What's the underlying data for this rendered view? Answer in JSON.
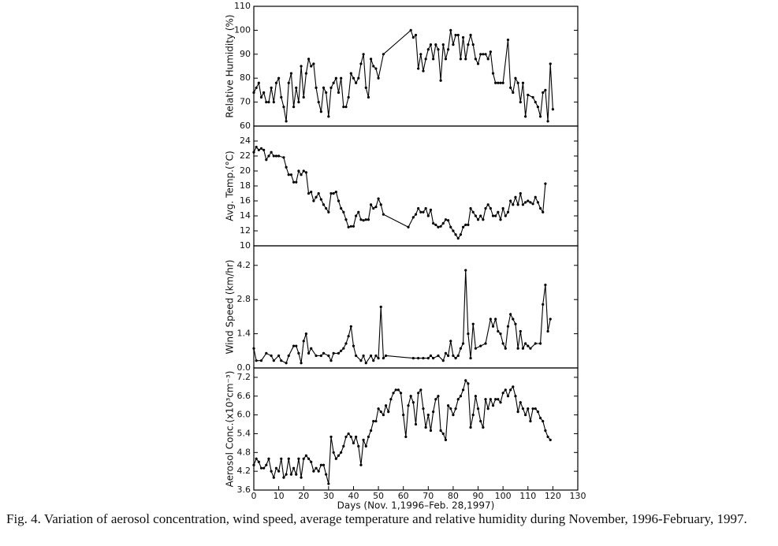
{
  "caption": "Fig. 4. Variation of aerosol concentration, wind speed, average temperature and relative humidity during November, 1996-February, 1997.",
  "chart_data": [
    {
      "type": "line",
      "ylabel": "Relative Humidity (%)",
      "color": "#000000",
      "xlim": [
        0,
        130
      ],
      "ylim": [
        60,
        110
      ],
      "yticks": [
        60,
        70,
        80,
        90,
        100,
        110
      ],
      "x": [
        0,
        1,
        2,
        3,
        4,
        5,
        6,
        7,
        8,
        9,
        10,
        11,
        12,
        13,
        14,
        15,
        16,
        17,
        18,
        19,
        20,
        21,
        22,
        23,
        24,
        25,
        26,
        27,
        28,
        29,
        30,
        31,
        32,
        33,
        34,
        35,
        36,
        37,
        38,
        39,
        40,
        41,
        42,
        43,
        44,
        45,
        46,
        47,
        48,
        49,
        50,
        52,
        63,
        64,
        65,
        66,
        67,
        68,
        69,
        70,
        71,
        72,
        73,
        74,
        75,
        76,
        77,
        78,
        79,
        80,
        81,
        82,
        83,
        84,
        85,
        86,
        87,
        88,
        89,
        90,
        91,
        92,
        93,
        94,
        95,
        96,
        97,
        98,
        99,
        100,
        102,
        103,
        104,
        105,
        106,
        107,
        108,
        109,
        110,
        112,
        113,
        114,
        115,
        116,
        117,
        118,
        119,
        120
      ],
      "values": [
        74,
        76,
        78,
        72,
        74,
        70,
        70,
        76,
        70,
        78,
        80,
        72,
        68,
        62,
        78,
        82,
        68,
        76,
        70,
        85,
        72,
        82,
        88,
        85,
        86,
        76,
        70,
        66,
        76,
        74,
        64,
        76,
        78,
        80,
        74,
        80,
        68,
        68,
        72,
        82,
        80,
        78,
        80,
        86,
        90,
        76,
        72,
        88,
        85,
        84,
        80,
        90,
        100,
        97,
        98,
        84,
        90,
        83,
        88,
        92,
        94,
        88,
        94,
        92,
        79,
        94,
        88,
        92,
        100,
        94,
        98,
        98,
        88,
        97,
        88,
        94,
        98,
        94,
        88,
        86,
        90,
        90,
        90,
        88,
        91,
        82,
        78,
        78,
        78,
        78,
        96,
        76,
        74,
        80,
        78,
        70,
        78,
        64,
        73,
        72,
        70,
        68,
        64,
        74,
        75,
        62,
        86,
        67
      ]
    },
    {
      "type": "line",
      "ylabel": "Avg. Temp.(°C)",
      "color": "#000000",
      "xlim": [
        0,
        130
      ],
      "ylim": [
        10,
        26
      ],
      "yticks": [
        10,
        12,
        14,
        16,
        18,
        20,
        22,
        24
      ],
      "x": [
        0,
        1,
        2,
        3,
        4,
        5,
        6,
        7,
        8,
        9,
        10,
        12,
        13,
        14,
        15,
        16,
        17,
        18,
        19,
        20,
        21,
        22,
        23,
        24,
        25,
        26,
        27,
        28,
        29,
        30,
        31,
        32,
        33,
        34,
        35,
        36,
        37,
        38,
        39,
        40,
        41,
        42,
        43,
        44,
        45,
        46,
        47,
        48,
        49,
        50,
        51,
        52,
        62,
        64,
        65,
        66,
        67,
        68,
        69,
        70,
        71,
        72,
        73,
        74,
        75,
        76,
        77,
        78,
        79,
        80,
        81,
        82,
        83,
        84,
        85,
        86,
        87,
        88,
        89,
        90,
        91,
        92,
        93,
        94,
        95,
        96,
        97,
        98,
        99,
        100,
        101,
        102,
        103,
        104,
        105,
        106,
        107,
        108,
        109,
        110,
        111,
        112,
        113,
        114,
        115,
        116,
        117
      ],
      "values": [
        22.5,
        23.2,
        22.8,
        23,
        22.8,
        21.5,
        22,
        22.5,
        22,
        22,
        22,
        21.8,
        20.5,
        19.5,
        19.5,
        18.5,
        18.5,
        20,
        19.5,
        20,
        19.8,
        17,
        17.2,
        16,
        16.5,
        17,
        16.2,
        15.5,
        15,
        14.5,
        17,
        17,
        17.2,
        16,
        15,
        14.5,
        13.5,
        12.5,
        12.6,
        12.6,
        14,
        14.5,
        13.5,
        13.4,
        13.5,
        13.5,
        15.5,
        15,
        15.2,
        16.3,
        15.5,
        14.2,
        12.5,
        13.8,
        14.2,
        15,
        14.5,
        14.5,
        15,
        14,
        14.8,
        13,
        12.8,
        12.5,
        12.6,
        13,
        13.5,
        13.4,
        12.5,
        12,
        11.5,
        11,
        11.5,
        12.5,
        12.8,
        12.8,
        15,
        14.5,
        14,
        13.5,
        14,
        13.5,
        15,
        15.5,
        15,
        14,
        14,
        14.5,
        13.5,
        15,
        14,
        14.5,
        16,
        15.5,
        16.5,
        15.5,
        17,
        15.5,
        15.8,
        16,
        15.8,
        15.6,
        16.5,
        15.8,
        15,
        14.5,
        18.3
      ]
    },
    {
      "type": "line",
      "ylabel": "Wind Speed (km/hr)",
      "color": "#000000",
      "xlim": [
        0,
        130
      ],
      "ylim": [
        0,
        5
      ],
      "yticks": [
        {
          "value": 0,
          "label": "0.0"
        },
        1.4,
        2.8,
        4.2
      ],
      "x": [
        0,
        1,
        3,
        5,
        7,
        8,
        10,
        11,
        13,
        14,
        16,
        17,
        18,
        19,
        20,
        21,
        22,
        23,
        25,
        27,
        28,
        30,
        31,
        32,
        34,
        35,
        36,
        37,
        38,
        39,
        40,
        41,
        43,
        44,
        45,
        47,
        48,
        49,
        50,
        51,
        52,
        53,
        64,
        66,
        68,
        70,
        71,
        72,
        74,
        76,
        77,
        78,
        79,
        80,
        81,
        82,
        83,
        84,
        85,
        86,
        87,
        88,
        89,
        91,
        93,
        95,
        96,
        97,
        98,
        99,
        100,
        101,
        102,
        103,
        104,
        105,
        106,
        107,
        108,
        109,
        110,
        111,
        113,
        115,
        116,
        117,
        118,
        119
      ],
      "values": [
        0.8,
        0.3,
        0.3,
        0.6,
        0.5,
        0.3,
        0.5,
        0.3,
        0.2,
        0.5,
        0.9,
        0.9,
        0.6,
        0.2,
        1.1,
        1.4,
        0.6,
        0.8,
        0.5,
        0.5,
        0.6,
        0.5,
        0.3,
        0.6,
        0.6,
        0.7,
        0.8,
        1.0,
        1.3,
        1.7,
        0.9,
        0.5,
        0.3,
        0.5,
        0.2,
        0.5,
        0.3,
        0.5,
        0.4,
        2.5,
        0.4,
        0.5,
        0.4,
        0.4,
        0.4,
        0.4,
        0.5,
        0.4,
        0.5,
        0.3,
        0.6,
        0.5,
        1.1,
        0.5,
        0.4,
        0.5,
        0.8,
        1.0,
        4.0,
        1.4,
        0.4,
        1.8,
        0.8,
        0.9,
        1.0,
        2.0,
        1.7,
        2.0,
        1.5,
        1.4,
        1.0,
        0.8,
        1.7,
        2.2,
        2.0,
        1.8,
        0.8,
        1.5,
        0.8,
        1.0,
        0.9,
        0.8,
        1.0,
        1.0,
        2.6,
        3.4,
        1.5,
        2.0
      ]
    },
    {
      "type": "line",
      "ylabel": "Aerosol Conc.(x10³cm⁻³)",
      "xlabel": "Days (Nov. 1,1996–Feb. 28,1997)",
      "color": "#000000",
      "xlim": [
        0,
        130
      ],
      "xticks": [
        0,
        10,
        20,
        30,
        40,
        50,
        60,
        70,
        80,
        90,
        100,
        110,
        120,
        130
      ],
      "ylim": [
        3.6,
        7.5
      ],
      "yticks": [
        3.6,
        4.2,
        4.8,
        5.4,
        {
          "value": 6,
          "label": "6.0"
        },
        6.6,
        7.2
      ],
      "x": [
        0,
        1,
        2,
        3,
        4,
        5,
        6,
        7,
        8,
        9,
        10,
        11,
        12,
        13,
        14,
        15,
        16,
        17,
        18,
        19,
        20,
        21,
        22,
        23,
        24,
        25,
        26,
        27,
        28,
        29,
        30,
        31,
        32,
        33,
        34,
        35,
        36,
        37,
        38,
        39,
        40,
        41,
        42,
        43,
        44,
        45,
        46,
        47,
        48,
        49,
        50,
        51,
        52,
        53,
        54,
        55,
        56,
        57,
        58,
        59,
        60,
        61,
        62,
        63,
        64,
        65,
        66,
        67,
        68,
        69,
        70,
        71,
        72,
        73,
        74,
        75,
        76,
        77,
        78,
        79,
        80,
        81,
        82,
        83,
        84,
        85,
        86,
        87,
        88,
        89,
        90,
        91,
        92,
        93,
        94,
        95,
        96,
        97,
        98,
        99,
        100,
        101,
        102,
        103,
        104,
        105,
        106,
        107,
        108,
        109,
        110,
        111,
        112,
        113,
        114,
        115,
        116,
        117,
        118,
        119
      ],
      "values": [
        4.4,
        4.6,
        4.5,
        4.3,
        4.3,
        4.4,
        4.6,
        4.2,
        4.0,
        4.3,
        4.2,
        4.6,
        4.0,
        4.1,
        4.6,
        4.1,
        4.3,
        4.1,
        4.6,
        4.0,
        4.6,
        4.7,
        4.6,
        4.5,
        4.2,
        4.3,
        4.2,
        4.4,
        4.4,
        4.1,
        3.8,
        5.3,
        4.8,
        4.6,
        4.7,
        4.8,
        5.0,
        5.3,
        5.4,
        5.3,
        5.1,
        5.3,
        5.0,
        4.4,
        5.2,
        5.0,
        5.3,
        5.5,
        5.8,
        5.8,
        6.2,
        6.1,
        6.0,
        6.3,
        6.1,
        6.5,
        6.7,
        6.8,
        6.8,
        6.7,
        6.0,
        5.3,
        6.3,
        6.6,
        6.4,
        5.7,
        6.7,
        6.8,
        6.2,
        5.6,
        6.0,
        5.5,
        6.1,
        6.5,
        6.6,
        5.5,
        5.4,
        5.2,
        6.3,
        6.2,
        6.0,
        6.2,
        6.5,
        6.6,
        6.8,
        7.1,
        7.0,
        5.6,
        6.0,
        6.6,
        6.2,
        5.8,
        5.6,
        6.5,
        6.2,
        6.5,
        6.3,
        6.5,
        6.5,
        6.4,
        6.7,
        6.8,
        6.6,
        6.8,
        6.9,
        6.6,
        6.1,
        6.4,
        6.2,
        6.0,
        6.2,
        5.8,
        6.2,
        6.2,
        6.1,
        5.9,
        5.8,
        5.5,
        5.3,
        5.2
      ]
    }
  ]
}
